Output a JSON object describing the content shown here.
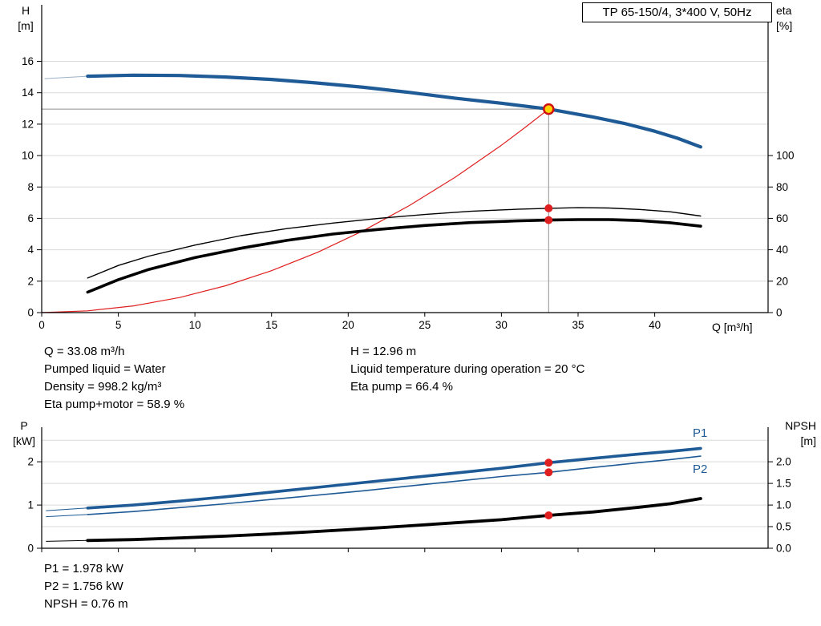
{
  "header": {
    "title_box": "TP 65-150/4, 3*400 V, 50Hz"
  },
  "labels": {
    "h_axis": [
      "H",
      "[m]"
    ],
    "eta_axis": [
      "eta",
      "[%]"
    ],
    "p_axis": [
      "P",
      "[kW]"
    ],
    "npsh_axis": [
      "NPSH",
      "[m]"
    ],
    "q_axis": "Q [m³/h]",
    "p1": "P1",
    "p2": "P2"
  },
  "info_top_left": [
    "Q = 33.08 m³/h",
    "Pumped liquid = Water",
    "Density = 998.2 kg/m³",
    "Eta pump+motor = 58.9 %"
  ],
  "info_top_right": [
    "H = 12.96 m",
    "Liquid temperature during operation = 20 °C",
    "Eta pump = 66.4 %"
  ],
  "info_bottom": [
    "P1 = 1.978 kW",
    "P2 = 1.756 kW",
    "NPSH = 0.76 m"
  ],
  "operating_point": {
    "q_m3h": 33.08,
    "h_m": 12.96,
    "eta_pump_pct": 66.4,
    "eta_pump_motor_pct": 58.9,
    "p1_kw": 1.978,
    "p2_kw": 1.756,
    "npsh_m": 0.76
  },
  "colors": {
    "curve_blue": "#1e5a96",
    "curve_red": "#e02020",
    "curve_black": "#000000",
    "lead_blue": "#9ab2c8",
    "grid": "#d9d9d9",
    "crosshair": "#8f8f8f",
    "duty_fill": "#ffd400",
    "duty_ring": "#d01010",
    "axis": "#000000"
  },
  "chart_data": [
    {
      "type": "line",
      "title": "TP 65-150/4, 3*400 V, 50Hz",
      "xlabel": "Q [m³/h]",
      "ylabel_left": "H [m]",
      "ylabel_right": "eta [%]",
      "xlim": [
        0,
        47.4
      ],
      "ylim_left": [
        0,
        19.6
      ],
      "ylim_right": [
        0,
        196
      ],
      "grid": "horizontal",
      "legend_position": "none",
      "x_ticks": [
        [
          0,
          "0"
        ],
        [
          5,
          "5"
        ],
        [
          10,
          "10"
        ],
        [
          15,
          "15"
        ],
        [
          20,
          "20"
        ],
        [
          25,
          "25"
        ],
        [
          30,
          "30"
        ],
        [
          35,
          "35"
        ],
        [
          40,
          "40"
        ]
      ],
      "y_left_ticks": [
        [
          0,
          "0"
        ],
        [
          2,
          "2"
        ],
        [
          4,
          "4"
        ],
        [
          6,
          "6"
        ],
        [
          8,
          "8"
        ],
        [
          10,
          "10"
        ],
        [
          12,
          "12"
        ],
        [
          14,
          "14"
        ],
        [
          16,
          "16"
        ]
      ],
      "y_right_ticks": [
        [
          0,
          "0"
        ],
        [
          20,
          "20"
        ],
        [
          40,
          "40"
        ],
        [
          60,
          "60"
        ],
        [
          80,
          "80"
        ],
        [
          100,
          "100"
        ]
      ],
      "gridlines": {
        "axis": "left",
        "values": [
          2,
          4,
          6,
          8,
          10,
          12,
          14,
          16
        ]
      },
      "crosshair": {
        "q": 33.08,
        "value": 12.96
      },
      "series": [
        {
          "id": "system-curve",
          "name": "System resistance curve",
          "axis": "left",
          "color": "#e02020",
          "width": 1.2,
          "points": [
            [
              0,
              0
            ],
            [
              3,
              0.11
            ],
            [
              6,
              0.43
            ],
            [
              9,
              0.96
            ],
            [
              12,
              1.71
            ],
            [
              15,
              2.67
            ],
            [
              18,
              3.84
            ],
            [
              21,
              5.22
            ],
            [
              24,
              6.82
            ],
            [
              27,
              8.63
            ],
            [
              30,
              10.66
            ],
            [
              31.5,
              11.76
            ],
            [
              33.08,
              12.96
            ]
          ]
        },
        {
          "id": "eta-pump",
          "name": "Eta pump",
          "axis": "right",
          "color": "#000000",
          "width": 1.4,
          "points": [
            [
              3,
              22
            ],
            [
              5,
              30
            ],
            [
              7,
              36
            ],
            [
              10,
              43
            ],
            [
              13,
              49
            ],
            [
              16,
              53.5
            ],
            [
              19,
              57
            ],
            [
              22,
              60
            ],
            [
              25,
              62.5
            ],
            [
              28,
              64.5
            ],
            [
              31,
              65.8
            ],
            [
              33.08,
              66.4
            ],
            [
              35,
              66.8
            ],
            [
              37,
              66.6
            ],
            [
              39,
              65.7
            ],
            [
              41,
              64.2
            ],
            [
              43,
              61.5
            ]
          ]
        },
        {
          "id": "eta-pump-motor",
          "name": "Eta pump+motor",
          "axis": "right",
          "color": "#000000",
          "width": 3.6,
          "points": [
            [
              3,
              13
            ],
            [
              5,
              21
            ],
            [
              7,
              27.5
            ],
            [
              10,
              35
            ],
            [
              13,
              41
            ],
            [
              16,
              46
            ],
            [
              19,
              50
            ],
            [
              22,
              53
            ],
            [
              25,
              55.5
            ],
            [
              28,
              57.3
            ],
            [
              31,
              58.4
            ],
            [
              33.08,
              58.9
            ],
            [
              35,
              59.2
            ],
            [
              37,
              59.2
            ],
            [
              39,
              58.6
            ],
            [
              41,
              57.2
            ],
            [
              43,
              55
            ]
          ]
        },
        {
          "id": "h-curve-lead",
          "name": "H curve lead-in",
          "axis": "left",
          "color": "#9ab2c8",
          "width": 1,
          "points": [
            [
              0.2,
              14.9
            ],
            [
              3,
              15.05
            ]
          ]
        },
        {
          "id": "h-curve",
          "name": "Pump curve H",
          "axis": "left",
          "color": "#1e5a96",
          "width": 4.2,
          "points": [
            [
              3,
              15.05
            ],
            [
              6,
              15.12
            ],
            [
              9,
              15.1
            ],
            [
              12,
              15.0
            ],
            [
              15,
              14.85
            ],
            [
              18,
              14.62
            ],
            [
              21,
              14.35
            ],
            [
              24,
              14.02
            ],
            [
              27,
              13.65
            ],
            [
              30,
              13.33
            ],
            [
              33.08,
              12.96
            ],
            [
              36,
              12.45
            ],
            [
              38,
              12.05
            ],
            [
              40,
              11.55
            ],
            [
              41.5,
              11.1
            ],
            [
              43,
              10.55
            ]
          ]
        }
      ],
      "markers": [
        {
          "type": "red-dot",
          "q": 33.08,
          "axis": "right",
          "value": 66.4
        },
        {
          "type": "red-dot",
          "q": 33.08,
          "axis": "right",
          "value": 58.9
        },
        {
          "type": "duty-point",
          "q": 33.08,
          "axis": "left",
          "value": 12.96
        }
      ]
    },
    {
      "type": "line",
      "title": "",
      "xlabel": "",
      "ylabel_left": "P [kW]",
      "ylabel_right": "NPSH [m]",
      "xlim": [
        0,
        47.4
      ],
      "ylim_left": [
        0,
        2.8
      ],
      "ylim_right": [
        0,
        2.8
      ],
      "grid": "horizontal",
      "legend_position": "inline-right",
      "x_ticks": [
        [
          0,
          ""
        ],
        [
          5,
          ""
        ],
        [
          10,
          ""
        ],
        [
          15,
          ""
        ],
        [
          20,
          ""
        ],
        [
          25,
          ""
        ],
        [
          30,
          ""
        ],
        [
          35,
          ""
        ],
        [
          40,
          ""
        ]
      ],
      "y_left_ticks": [
        [
          0,
          "0"
        ],
        [
          1,
          "1"
        ],
        [
          2,
          "2"
        ]
      ],
      "y_right_ticks": [
        [
          0,
          "0.0"
        ],
        [
          0.5,
          "0.5"
        ],
        [
          1,
          "1.0"
        ],
        [
          1.5,
          "1.5"
        ],
        [
          2,
          "2.0"
        ]
      ],
      "gridlines": {
        "axis": "left",
        "values": [
          0.5,
          1,
          1.5,
          2,
          2.5
        ]
      },
      "series": [
        {
          "id": "npsh-lead",
          "name": "NPSH lead-in",
          "axis": "right",
          "color": "#000000",
          "width": 1,
          "points": [
            [
              0.3,
              0.16
            ],
            [
              3,
              0.18
            ]
          ]
        },
        {
          "id": "npsh",
          "name": "NPSH",
          "axis": "right",
          "color": "#000000",
          "width": 3.8,
          "points": [
            [
              3,
              0.18
            ],
            [
              6,
              0.2
            ],
            [
              9,
              0.24
            ],
            [
              12,
              0.28
            ],
            [
              15,
              0.33
            ],
            [
              18,
              0.39
            ],
            [
              21,
              0.45
            ],
            [
              24,
              0.52
            ],
            [
              27,
              0.59
            ],
            [
              30,
              0.66
            ],
            [
              33.08,
              0.76
            ],
            [
              36,
              0.84
            ],
            [
              39,
              0.95
            ],
            [
              41,
              1.03
            ],
            [
              43,
              1.15
            ]
          ]
        },
        {
          "id": "p2-lead",
          "name": "P2 lead-in",
          "axis": "left",
          "color": "#1e5a96",
          "width": 1,
          "points": [
            [
              0.3,
              0.73
            ],
            [
              3,
              0.78
            ]
          ]
        },
        {
          "id": "p2",
          "name": "P2",
          "axis": "left",
          "color": "#1e5a96",
          "width": 1.6,
          "points": [
            [
              3,
              0.78
            ],
            [
              6,
              0.85
            ],
            [
              9,
              0.94
            ],
            [
              12,
              1.03
            ],
            [
              15,
              1.13
            ],
            [
              18,
              1.23
            ],
            [
              21,
              1.33
            ],
            [
              24,
              1.44
            ],
            [
              27,
              1.55
            ],
            [
              30,
              1.66
            ],
            [
              33.08,
              1.756
            ],
            [
              36,
              1.87
            ],
            [
              39,
              1.98
            ],
            [
              41,
              2.05
            ],
            [
              43,
              2.13
            ]
          ]
        },
        {
          "id": "p1-lead",
          "name": "P1 lead-in",
          "axis": "left",
          "color": "#1e5a96",
          "width": 1,
          "points": [
            [
              0.3,
              0.87
            ],
            [
              3,
              0.93
            ]
          ]
        },
        {
          "id": "p1",
          "name": "P1",
          "axis": "left",
          "color": "#1e5a96",
          "width": 3.6,
          "points": [
            [
              3,
              0.93
            ],
            [
              6,
              1.0
            ],
            [
              9,
              1.09
            ],
            [
              12,
              1.19
            ],
            [
              15,
              1.3
            ],
            [
              18,
              1.41
            ],
            [
              21,
              1.52
            ],
            [
              24,
              1.63
            ],
            [
              27,
              1.74
            ],
            [
              30,
              1.85
            ],
            [
              33.08,
              1.978
            ],
            [
              36,
              2.08
            ],
            [
              39,
              2.18
            ],
            [
              41,
              2.24
            ],
            [
              43,
              2.31
            ]
          ]
        }
      ],
      "markers": [
        {
          "type": "red-dot",
          "q": 33.08,
          "axis": "left",
          "value": 1.978
        },
        {
          "type": "red-dot",
          "q": 33.08,
          "axis": "left",
          "value": 1.756
        },
        {
          "type": "red-dot",
          "q": 33.08,
          "axis": "right",
          "value": 0.76
        }
      ]
    }
  ]
}
